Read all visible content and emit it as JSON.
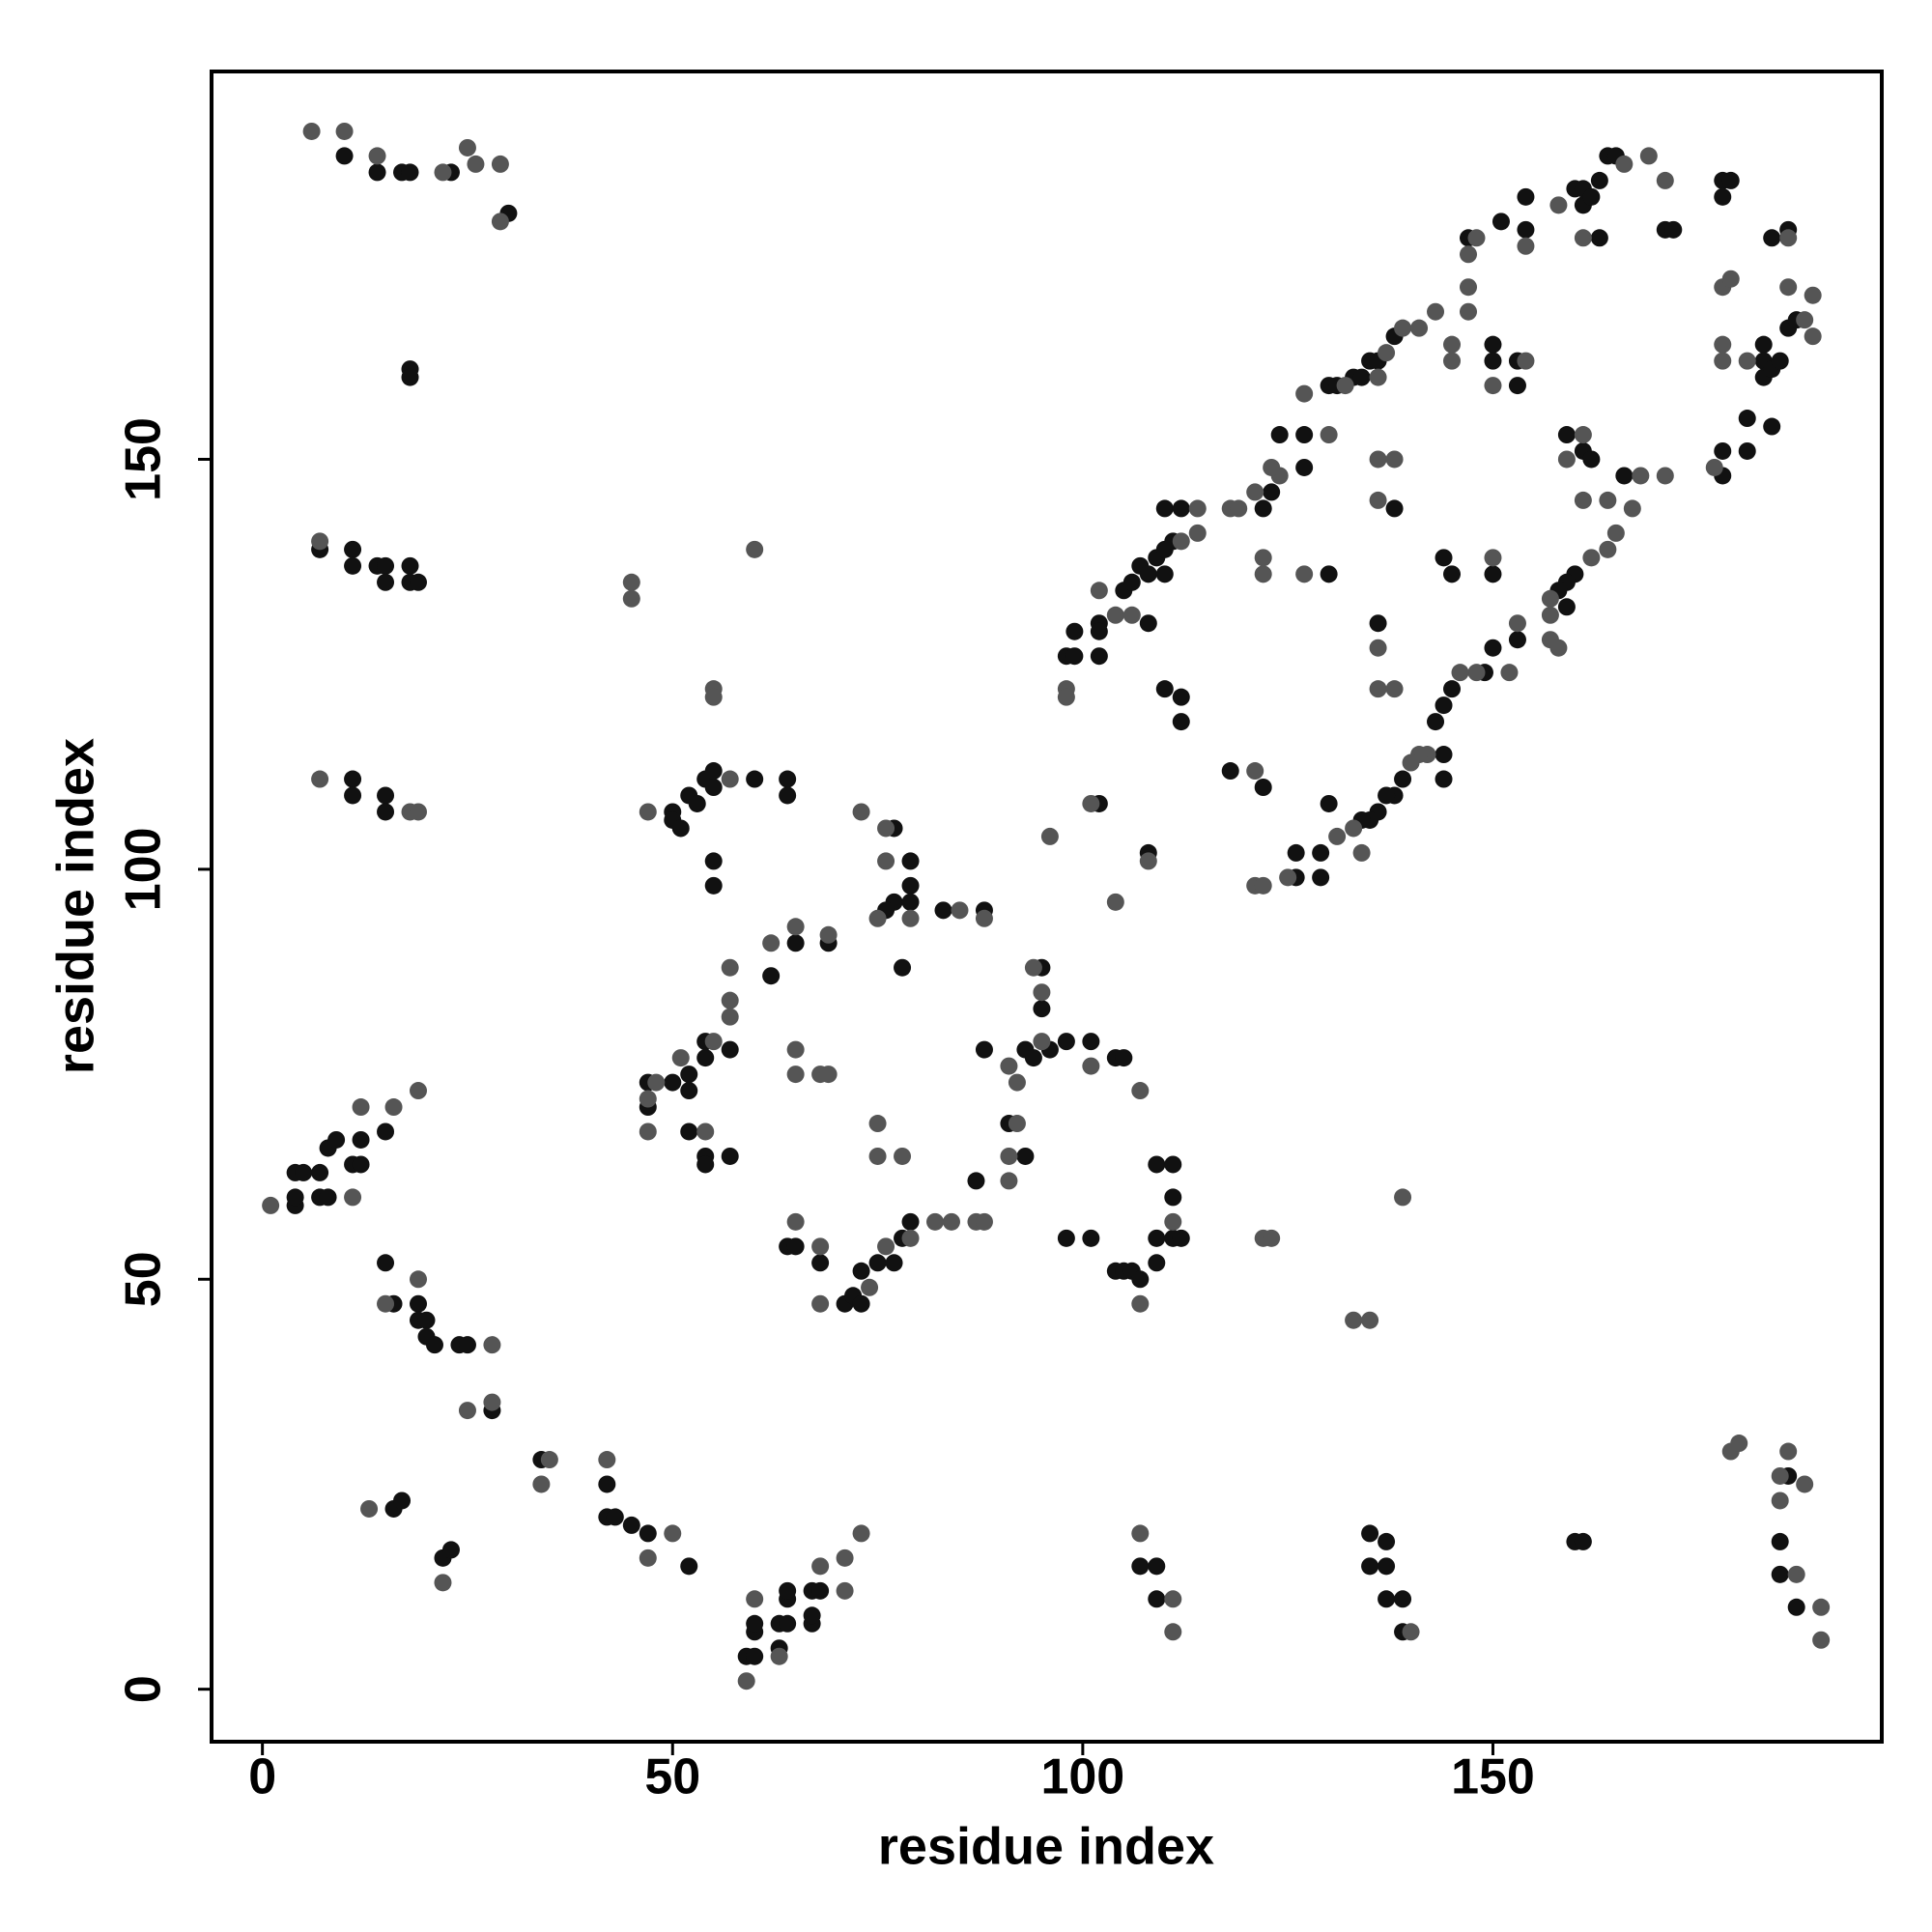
{
  "chart_data": {
    "type": "scatter",
    "xlabel": "residue index",
    "ylabel": "residue index",
    "xlim": [
      -6.2,
      197.4
    ],
    "ylim": [
      -6.4,
      197.3
    ],
    "xticks": [
      0,
      50,
      100,
      150
    ],
    "yticks": [
      0,
      50,
      100,
      150
    ],
    "series": [
      {
        "color": "#111111",
        "x": [
          10,
          14,
          17,
          18,
          23,
          30,
          18,
          18,
          7,
          11,
          11,
          14,
          15,
          15,
          18,
          18,
          19,
          11,
          11,
          15,
          15,
          4,
          4,
          4,
          5,
          7,
          8,
          7,
          8,
          9,
          11,
          12,
          12,
          15,
          15,
          16,
          19,
          19,
          20,
          20,
          21,
          24,
          25,
          28,
          16,
          17,
          22,
          23,
          34,
          42,
          42,
          43,
          45,
          47,
          52,
          59,
          60,
          60,
          60,
          63,
          63,
          64,
          64,
          64,
          67,
          67,
          67,
          68,
          107,
          109,
          109,
          135,
          137,
          135,
          137,
          137,
          139,
          139,
          160,
          161,
          186,
          185,
          185,
          187,
          50,
          50,
          51,
          52,
          53,
          54,
          55,
          55,
          60,
          64,
          64,
          55,
          55,
          77,
          79,
          79,
          77,
          76,
          79,
          78,
          83,
          88,
          65,
          69,
          57,
          62,
          47,
          47,
          50,
          52,
          52,
          54,
          54,
          52,
          54,
          54,
          57,
          64,
          65,
          68,
          71,
          72,
          73,
          73,
          75,
          77,
          78,
          79,
          87,
          88,
          93,
          94,
          95,
          95,
          96,
          98,
          101,
          104,
          105,
          91,
          93,
          98,
          101,
          104,
          105,
          106,
          107,
          109,
          109,
          109,
          111,
          111,
          111,
          112,
          102,
          108,
          98,
          99,
          99,
          102,
          102,
          102,
          108,
          105,
          106,
          107,
          108,
          109,
          110,
          111,
          110,
          112,
          110,
          110,
          112,
          112,
          122,
          123,
          124,
          127,
          127,
          130,
          130,
          131,
          133,
          134,
          135,
          136,
          138,
          147,
          150,
          150,
          153,
          153,
          151,
          154,
          154,
          160,
          161,
          161,
          162,
          163,
          164,
          165,
          163,
          171,
          172,
          178,
          179,
          178,
          184,
          186,
          183,
          183,
          183,
          184,
          185,
          186,
          187,
          184,
          181,
          181,
          178,
          178,
          166,
          160,
          159,
          158,
          159,
          159,
          161,
          162,
          153,
          150,
          149,
          145,
          144,
          143,
          144,
          139,
          138,
          137,
          136,
          135,
          134,
          129,
          126,
          126,
          129,
          130,
          144,
          136,
          138,
          144,
          145,
          150,
          118,
          122
        ],
        "values": [
          187,
          185,
          185,
          185,
          185,
          180,
          161,
          160,
          139,
          139,
          137,
          137,
          137,
          135,
          137,
          135,
          135,
          111,
          109,
          109,
          107,
          59,
          60,
          63,
          63,
          60,
          60,
          63,
          66,
          67,
          64,
          64,
          67,
          68,
          52,
          47,
          47,
          45,
          45,
          43,
          42,
          42,
          42,
          34,
          22,
          23,
          16,
          17,
          28,
          25,
          21,
          21,
          20,
          19,
          15,
          4,
          4,
          7,
          8,
          5,
          8,
          8,
          11,
          12,
          8,
          9,
          12,
          12,
          15,
          15,
          11,
          19,
          18,
          15,
          15,
          11,
          11,
          7,
          18,
          18,
          26,
          18,
          14,
          10,
          107,
          106,
          105,
          109,
          108,
          111,
          112,
          110,
          111,
          111,
          109,
          101,
          98,
          105,
          101,
          98,
          96,
          95,
          96,
          88,
          95,
          95,
          91,
          91,
          78,
          87,
          74,
          71,
          74,
          75,
          73,
          77,
          79,
          68,
          65,
          64,
          65,
          54,
          54,
          52,
          47,
          48,
          51,
          47,
          52,
          52,
          55,
          57,
          62,
          78,
          78,
          77,
          88,
          83,
          78,
          79,
          79,
          77,
          77,
          69,
          65,
          55,
          55,
          51,
          51,
          51,
          50,
          52,
          55,
          64,
          64,
          60,
          55,
          55,
          108,
          102,
          126,
          126,
          129,
          130,
          129,
          126,
          130,
          134,
          135,
          137,
          136,
          138,
          139,
          140,
          144,
          144,
          136,
          122,
          121,
          118,
          144,
          146,
          153,
          153,
          149,
          136,
          159,
          159,
          160,
          160,
          162,
          162,
          165,
          177,
          164,
          162,
          162,
          159,
          179,
          178,
          182,
          183,
          183,
          181,
          182,
          184,
          187,
          187,
          177,
          178,
          178,
          184,
          184,
          182,
          177,
          178,
          164,
          162,
          160,
          161,
          162,
          166,
          167,
          154,
          155,
          151,
          151,
          148,
          148,
          136,
          135,
          134,
          132,
          153,
          151,
          150,
          128,
          127,
          124,
          122,
          120,
          118,
          114,
          111,
          109,
          109,
          107,
          106,
          106,
          102,
          102,
          99,
          99,
          108,
          111,
          130,
          144,
          138,
          136,
          136,
          112,
          110
        ]
      },
      {
        "color": "#555555",
        "x": [
          6,
          10,
          14,
          22,
          25,
          26,
          29,
          29,
          7,
          7,
          18,
          19,
          1,
          11,
          12,
          16,
          19,
          15,
          19,
          28,
          25,
          28,
          13,
          22,
          35,
          34,
          42,
          47,
          50,
          59,
          60,
          63,
          68,
          71,
          71,
          73,
          107,
          111,
          111,
          140,
          179,
          180,
          185,
          186,
          188,
          185,
          187,
          190,
          190,
          45,
          45,
          60,
          55,
          55,
          47,
          57,
          73,
          76,
          76,
          75,
          79,
          85,
          88,
          62,
          65,
          69,
          57,
          57,
          57,
          47,
          48,
          51,
          55,
          47,
          54,
          65,
          65,
          68,
          69,
          75,
          75,
          78,
          65,
          68,
          68,
          74,
          76,
          79,
          82,
          84,
          87,
          88,
          91,
          95,
          95,
          94,
          101,
          107,
          92,
          91,
          91,
          92,
          107,
          111,
          122,
          123,
          133,
          135,
          139,
          96,
          101,
          104,
          108,
          98,
          98,
          102,
          104,
          106,
          112,
          114,
          114,
          118,
          119,
          121,
          122,
          122,
          124,
          123,
          127,
          127,
          130,
          132,
          136,
          137,
          139,
          141,
          143,
          145,
          145,
          147,
          147,
          147,
          148,
          150,
          154,
          154,
          158,
          166,
          169,
          171,
          161,
          186,
          178,
          179,
          186,
          178,
          178,
          181,
          188,
          189,
          189,
          177,
          171,
          168,
          167,
          165,
          164,
          162,
          157,
          157,
          157,
          158,
          161,
          159,
          161,
          164,
          153,
          152,
          148,
          146,
          142,
          141,
          140,
          133,
          131,
          134,
          136,
          136,
          138,
          136,
          138,
          136,
          150,
          121,
          121,
          122,
          125
        ],
        "values": [
          190,
          190,
          187,
          185,
          188,
          186,
          186,
          179,
          140,
          111,
          107,
          107,
          59,
          60,
          71,
          71,
          73,
          47,
          50,
          42,
          34,
          35,
          22,
          13,
          28,
          25,
          28,
          16,
          19,
          1,
          11,
          4,
          15,
          12,
          16,
          19,
          19,
          11,
          7,
          7,
          29,
          30,
          26,
          29,
          25,
          23,
          14,
          10,
          6,
          135,
          133,
          139,
          122,
          121,
          107,
          111,
          107,
          105,
          101,
          94,
          94,
          95,
          94,
          91,
          93,
          92,
          88,
          84,
          82,
          72,
          74,
          77,
          79,
          68,
          68,
          78,
          75,
          75,
          75,
          69,
          65,
          65,
          57,
          54,
          47,
          49,
          54,
          55,
          57,
          57,
          57,
          57,
          76,
          79,
          85,
          88,
          76,
          73,
          69,
          65,
          62,
          74,
          47,
          57,
          55,
          55,
          45,
          45,
          60,
          104,
          108,
          96,
          101,
          122,
          121,
          134,
          131,
          131,
          140,
          141,
          144,
          144,
          144,
          146,
          138,
          136,
          148,
          149,
          158,
          136,
          153,
          159,
          160,
          163,
          166,
          166,
          168,
          164,
          162,
          168,
          171,
          175,
          177,
          159,
          162,
          176,
          181,
          186,
          187,
          184,
          177,
          177,
          171,
          172,
          171,
          164,
          162,
          162,
          167,
          165,
          170,
          149,
          148,
          148,
          144,
          141,
          139,
          138,
          133,
          131,
          128,
          127,
          153,
          150,
          145,
          145,
          130,
          124,
          124,
          124,
          114,
          114,
          113,
          105,
          104,
          102,
          127,
          122,
          122,
          150,
          150,
          145,
          138,
          112,
          98,
          98,
          99
        ]
      }
    ]
  }
}
